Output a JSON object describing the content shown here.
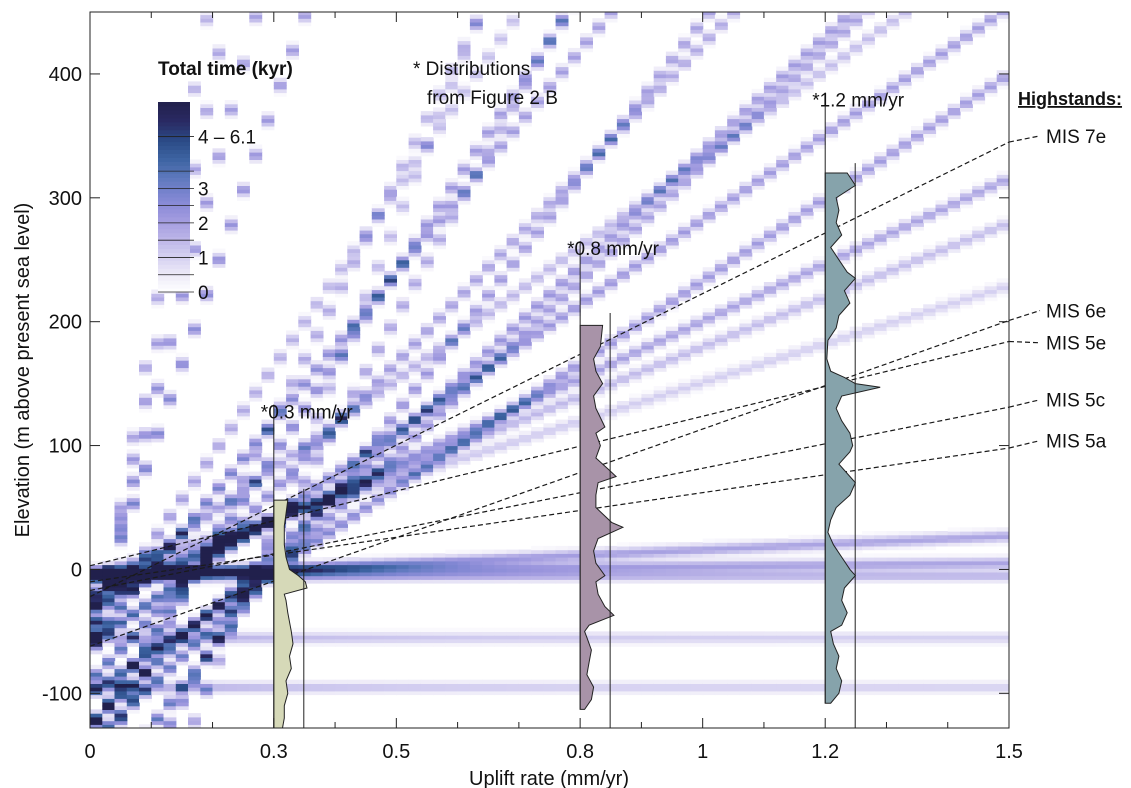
{
  "chart_data": {
    "type": "heatmap",
    "title": "",
    "xlabel": "Uplift rate (mm/yr)",
    "ylabel": "Elevation (m above present sea level)",
    "xlim": [
      0,
      1.5
    ],
    "ylim": [
      -128,
      450
    ],
    "x_ticks": [
      {
        "value": 0,
        "label": "0"
      },
      {
        "value": 0.3,
        "label": "0.3"
      },
      {
        "value": 0.5,
        "label": "0.5"
      },
      {
        "value": 0.8,
        "label": "0.8"
      },
      {
        "value": 1,
        "label": "1"
      },
      {
        "value": 1.2,
        "label": "1.2"
      },
      {
        "value": 1.5,
        "label": "1.5"
      }
    ],
    "x_minor_ticks": [
      0.1,
      0.2,
      0.4,
      0.6,
      0.7,
      0.9,
      1.1,
      1.3,
      1.4
    ],
    "y_ticks": [
      {
        "value": -100,
        "label": "-100"
      },
      {
        "value": 0,
        "label": "0"
      },
      {
        "value": 100,
        "label": "100"
      },
      {
        "value": 200,
        "label": "200"
      },
      {
        "value": 300,
        "label": "300"
      },
      {
        "value": 400,
        "label": "400"
      }
    ],
    "colorbar": {
      "title": "Total time (kyr)",
      "labels": [
        {
          "value": 0,
          "label": "0"
        },
        {
          "value": 1,
          "label": "1"
        },
        {
          "value": 2,
          "label": "2"
        },
        {
          "value": 3,
          "label": "3"
        },
        {
          "value": 4.5,
          "label": "4 – 6.1"
        }
      ],
      "colors": [
        "#ffffff",
        "#ece9f7",
        "#d2cdf0",
        "#b7b0e6",
        "#9d97de",
        "#7f86d2",
        "#5f79be",
        "#3d64a2",
        "#2b4a86",
        "#2a2a63",
        "#21204c"
      ]
    },
    "density_bands": [
      {
        "base": 2,
        "rate": 0.4,
        "weight": 0.55
      },
      {
        "base": 6,
        "rate": 0.27,
        "weight": 0.55
      },
      {
        "base": 125,
        "rate": 0.27,
        "weight": 0.6
      },
      {
        "base": 240,
        "rate": 0.27,
        "weight": 0.45
      },
      {
        "base": 330,
        "rate": 0.27,
        "weight": 0.35
      },
      {
        "base": 100,
        "rate": 0.3,
        "weight": 0.6
      },
      {
        "base": 140,
        "rate": 0.3,
        "weight": 0.55
      },
      {
        "base": 190,
        "rate": 0.3,
        "weight": 0.55
      },
      {
        "base": 60,
        "rate": 0.175,
        "weight": 0.6
      },
      {
        "base": 90,
        "rate": 0.175,
        "weight": 0.5
      },
      {
        "base": 170,
        "rate": 0.175,
        "weight": 0.4
      },
      {
        "base": 130,
        "rate": 0.175,
        "weight": 0.55
      },
      {
        "base": 30,
        "rate": 0.13,
        "weight": 0.55
      },
      {
        "base": 60,
        "rate": 0.1,
        "weight": 0.55
      },
      {
        "base": 20,
        "rate": 0.1,
        "weight": 0.4
      },
      {
        "base": 25,
        "rate": 0.07,
        "weight": 0.4
      },
      {
        "base": 50,
        "rate": 0.07,
        "weight": 0.35
      },
      {
        "base": 45,
        "rate": 0.032,
        "weight": 0.45
      },
      {
        "base": 60,
        "rate": 0.032,
        "weight": 0.4
      },
      {
        "base": 75,
        "rate": 0.032,
        "weight": 0.35
      },
      {
        "base": 5,
        "rate": 0.032,
        "weight": 0.3
      },
      {
        "base": 90,
        "rate": 0.032,
        "weight": 0.3
      },
      {
        "base": 5,
        "rate": 0.0,
        "weight": 0.45
      },
      {
        "base": 55,
        "rate": 0.0,
        "weight": 0.3
      },
      {
        "base": 95,
        "rate": 0.0,
        "weight": 0.3
      }
    ],
    "highstand_lines": [
      {
        "name": "MIS 7e",
        "start": -22,
        "end": 345
      },
      {
        "name": "MIS 6e",
        "start": -62,
        "end": 201
      },
      {
        "name": "MIS 5e",
        "start": 3,
        "end": 184
      },
      {
        "name": "MIS 5c",
        "start": -17,
        "end": 131
      },
      {
        "name": "MIS 5a",
        "start": -10,
        "end": 98
      }
    ],
    "highstand_labels": [
      {
        "label": "MIS 7e",
        "elevation": 350
      },
      {
        "label": "MIS 6e",
        "elevation": 209
      },
      {
        "label": "MIS 5e",
        "elevation": 183
      },
      {
        "label": "MIS 5c",
        "elevation": 137
      },
      {
        "label": "MIS 5a",
        "elevation": 104
      }
    ],
    "highstands_title": "Highstands:",
    "distributions_note": [
      "* Distributions",
      "from Figure 2 B"
    ],
    "distributions": [
      {
        "uplift": 0.3,
        "label": "*0.3 mm/yr",
        "color": "#d6d9b8",
        "baseline_top": 133,
        "top": 56,
        "bottom": -128,
        "right_axis_top": 65,
        "right_axis_bottom": -128,
        "width_scale": 0.0035,
        "profile": [
          [
            56,
            0.4
          ],
          [
            45,
            0.35
          ],
          [
            35,
            0.3
          ],
          [
            20,
            0.3
          ],
          [
            10,
            0.35
          ],
          [
            0,
            0.45
          ],
          [
            -5,
            0.7
          ],
          [
            -10,
            0.9
          ],
          [
            -15,
            0.95
          ],
          [
            -20,
            0.3
          ],
          [
            -25,
            0.35
          ],
          [
            -35,
            0.4
          ],
          [
            -50,
            0.5
          ],
          [
            -60,
            0.55
          ],
          [
            -70,
            0.45
          ],
          [
            -80,
            0.5
          ],
          [
            -90,
            0.35
          ],
          [
            -100,
            0.4
          ],
          [
            -110,
            0.3
          ],
          [
            -120,
            0.3
          ],
          [
            -128,
            0.25
          ]
        ]
      },
      {
        "uplift": 0.8,
        "label": "*0.8 mm/yr",
        "color": "#a893a8",
        "baseline_top": 265,
        "top": 197,
        "bottom": -113,
        "right_axis_top": 207,
        "right_axis_bottom": -128,
        "width_scale": 0.0045,
        "profile": [
          [
            197,
            0.5
          ],
          [
            180,
            0.45
          ],
          [
            170,
            0.3
          ],
          [
            160,
            0.35
          ],
          [
            150,
            0.5
          ],
          [
            140,
            0.3
          ],
          [
            130,
            0.35
          ],
          [
            115,
            0.55
          ],
          [
            110,
            0.35
          ],
          [
            100,
            0.45
          ],
          [
            90,
            0.35
          ],
          [
            80,
            0.65
          ],
          [
            75,
            0.8
          ],
          [
            70,
            0.4
          ],
          [
            60,
            0.35
          ],
          [
            50,
            0.35
          ],
          [
            38,
            0.7
          ],
          [
            34,
            0.95
          ],
          [
            25,
            0.4
          ],
          [
            15,
            0.3
          ],
          [
            5,
            0.35
          ],
          [
            -5,
            0.55
          ],
          [
            -10,
            0.35
          ],
          [
            -20,
            0.4
          ],
          [
            -30,
            0.55
          ],
          [
            -37,
            0.75
          ],
          [
            -45,
            0.2
          ],
          [
            -50,
            0.1
          ],
          [
            -55,
            0.15
          ],
          [
            -65,
            0.25
          ],
          [
            -75,
            0.2
          ],
          [
            -85,
            0.15
          ],
          [
            -95,
            0.3
          ],
          [
            -105,
            0.25
          ],
          [
            -113,
            0.1
          ]
        ]
      },
      {
        "uplift": 1.2,
        "label": "*1.2 mm/yr",
        "color": "#86a3ab",
        "baseline_top": 385,
        "top": 320,
        "bottom": -108,
        "right_axis_top": 328,
        "right_axis_bottom": -128,
        "width_scale": 0.0055,
        "profile": [
          [
            320,
            0.4
          ],
          [
            310,
            0.55
          ],
          [
            300,
            0.2
          ],
          [
            290,
            0.25
          ],
          [
            280,
            0.2
          ],
          [
            270,
            0.3
          ],
          [
            260,
            0.1
          ],
          [
            250,
            0.25
          ],
          [
            240,
            0.4
          ],
          [
            235,
            0.55
          ],
          [
            225,
            0.35
          ],
          [
            215,
            0.45
          ],
          [
            205,
            0.25
          ],
          [
            195,
            0.2
          ],
          [
            185,
            0.05
          ],
          [
            170,
            0.03
          ],
          [
            160,
            0.1
          ],
          [
            155,
            0.35
          ],
          [
            150,
            0.55
          ],
          [
            147,
            1.0
          ],
          [
            140,
            0.3
          ],
          [
            130,
            0.2
          ],
          [
            120,
            0.3
          ],
          [
            110,
            0.45
          ],
          [
            100,
            0.5
          ],
          [
            95,
            0.45
          ],
          [
            85,
            0.25
          ],
          [
            75,
            0.45
          ],
          [
            70,
            0.55
          ],
          [
            60,
            0.45
          ],
          [
            50,
            0.2
          ],
          [
            40,
            0.1
          ],
          [
            30,
            0.05
          ],
          [
            20,
            0.15
          ],
          [
            10,
            0.3
          ],
          [
            0,
            0.45
          ],
          [
            -5,
            0.55
          ],
          [
            -15,
            0.35
          ],
          [
            -25,
            0.3
          ],
          [
            -35,
            0.4
          ],
          [
            -45,
            0.3
          ],
          [
            -50,
            0.1
          ],
          [
            -60,
            0.15
          ],
          [
            -70,
            0.25
          ],
          [
            -80,
            0.2
          ],
          [
            -90,
            0.3
          ],
          [
            -100,
            0.25
          ],
          [
            -108,
            0.1
          ]
        ]
      }
    ]
  }
}
